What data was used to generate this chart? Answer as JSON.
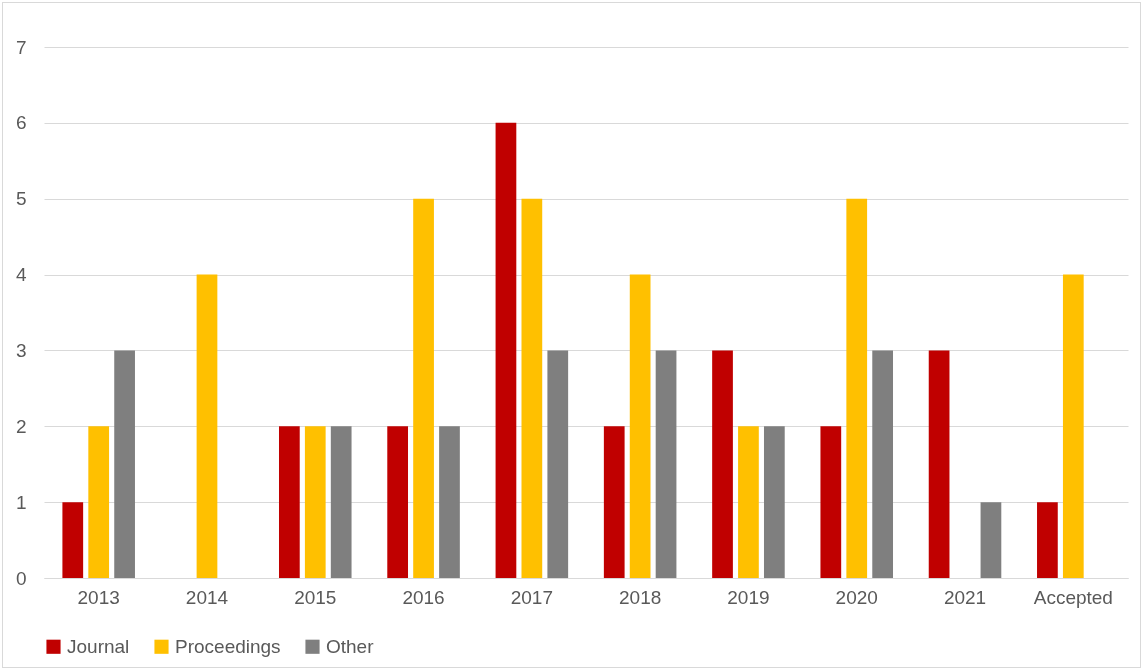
{
  "chart_data": {
    "type": "bar",
    "categories": [
      "2013",
      "2014",
      "2015",
      "2016",
      "2017",
      "2018",
      "2019",
      "2020",
      "2021",
      "Accepted"
    ],
    "series": [
      {
        "name": "Journal",
        "color": "#c00000",
        "values": [
          1,
          null,
          2,
          2,
          6,
          2,
          3,
          2,
          3,
          1
        ]
      },
      {
        "name": "Proceedings",
        "color": "#ffc000",
        "values": [
          2,
          4,
          2,
          5,
          5,
          4,
          2,
          5,
          null,
          4
        ]
      },
      {
        "name": "Other",
        "color": "#7f7f7f",
        "values": [
          3,
          null,
          2,
          2,
          3,
          3,
          2,
          3,
          1,
          null
        ]
      }
    ],
    "ylim": [
      0,
      7
    ],
    "yticks": [
      0,
      1,
      2,
      3,
      4,
      5,
      6,
      7
    ],
    "grid": "y",
    "legend": "bottom"
  }
}
